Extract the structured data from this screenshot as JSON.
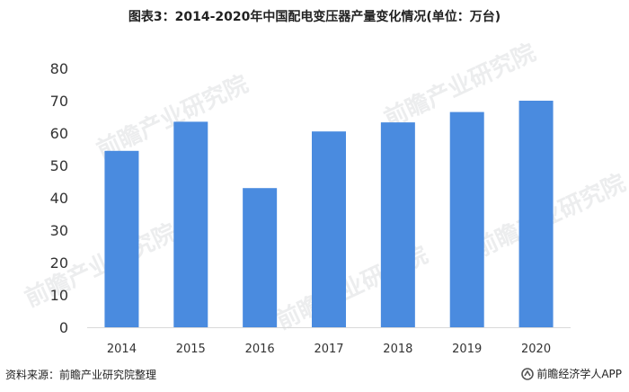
{
  "header": {
    "title": "图表3：2014-2020年中国配电变压器产量变化情况(单位：万台)"
  },
  "footer": {
    "source": "资料来源：前瞻产业研究院整理",
    "brand": "前瞻经济学人APP"
  },
  "watermark": {
    "text": "前瞻产业研究院"
  },
  "colors": {
    "bar": "#4a8bdf",
    "axis": "#d9d9d9"
  },
  "chart_data": {
    "type": "bar",
    "categories": [
      "2014",
      "2015",
      "2016",
      "2017",
      "2018",
      "2019",
      "2020"
    ],
    "values": [
      54.5,
      63.5,
      43,
      60.5,
      63.3,
      66.5,
      70
    ],
    "title": "图表3：2014-2020年中国配电变压器产量变化情况(单位：万台)",
    "xlabel": "",
    "ylabel": "",
    "ylim": [
      0,
      80
    ],
    "yticks": [
      0,
      10,
      20,
      30,
      40,
      50,
      60,
      70,
      80
    ],
    "grid": false,
    "legend": "none"
  }
}
